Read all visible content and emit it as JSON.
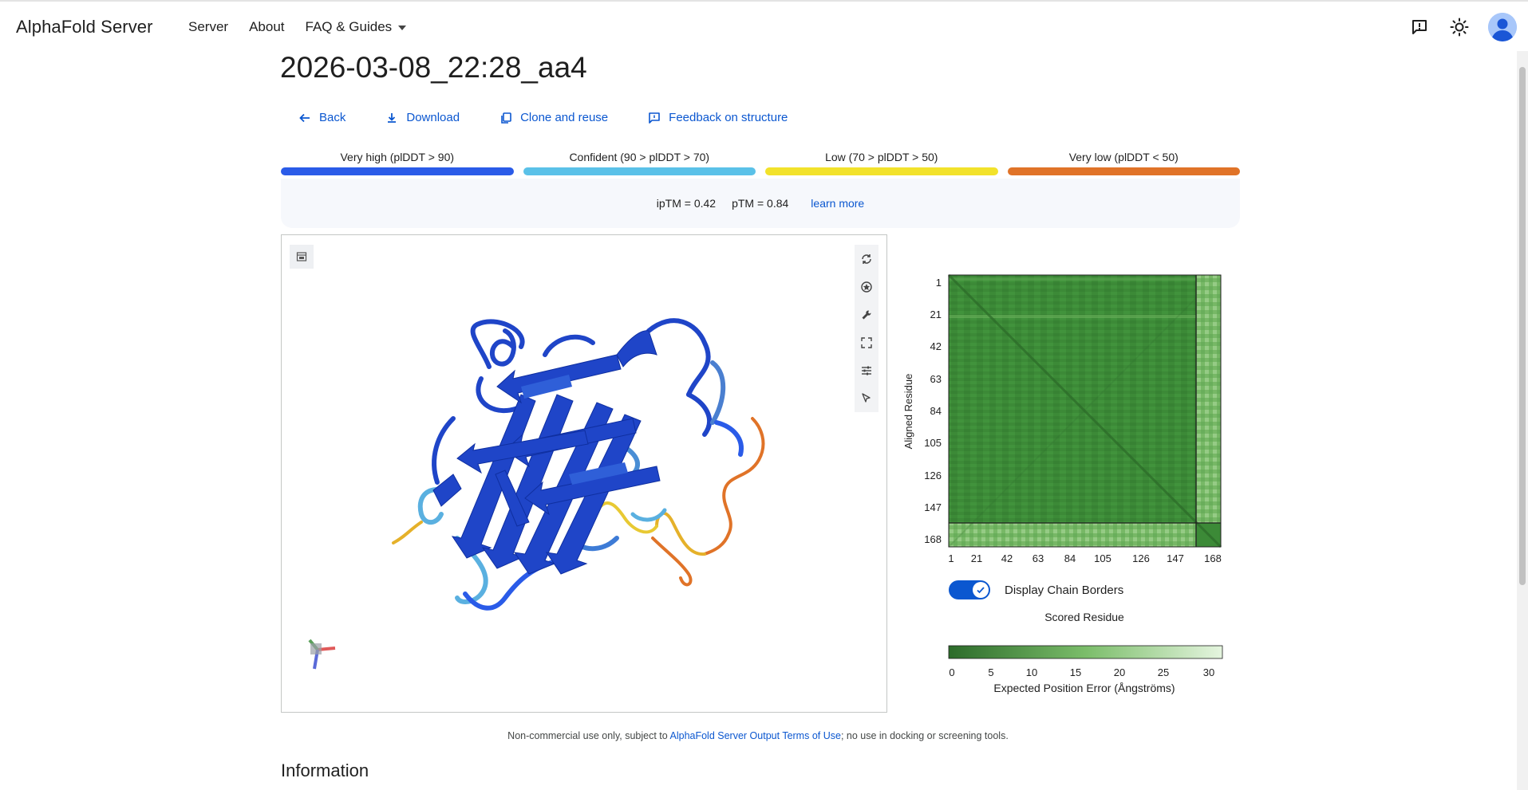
{
  "header": {
    "brand": "AlphaFold Server",
    "nav": [
      "Server",
      "About",
      "FAQ & Guides"
    ],
    "icons": [
      "feedback-icon",
      "theme-icon",
      "account-avatar"
    ]
  },
  "job": {
    "title": "2026-03-08_22:28_aa4"
  },
  "actions": {
    "back": "Back",
    "download": "Download",
    "clone": "Clone and reuse",
    "feedback": "Feedback on structure"
  },
  "plddt_legend": [
    {
      "label": "Very high (plDDT > 90)",
      "color": "#2a5be8"
    },
    {
      "label": "Confident (90 > plDDT > 70)",
      "color": "#5ac1e8"
    },
    {
      "label": "Low (70 > plDDT > 50)",
      "color": "#f2e22b"
    },
    {
      "label": "Very low (plDDT < 50)",
      "color": "#e07328"
    }
  ],
  "metrics": {
    "iptm": "ipTM = 0.42",
    "ptm": "pTM = 0.84",
    "learn_more": "learn more"
  },
  "viewer": {
    "tools": [
      "reset-icon",
      "spin-icon",
      "wrench-icon",
      "fullscreen-icon",
      "settings-icon",
      "select-icon"
    ]
  },
  "pae_plot": {
    "ylabel": "Aligned Residue",
    "xlabel": "Scored Residue",
    "ticks": [
      "1",
      "21",
      "42",
      "63",
      "84",
      "105",
      "126",
      "147",
      "168"
    ],
    "toggle_label": "Display Chain Borders",
    "toggle_on": true,
    "colorbar_ticks": [
      "0",
      "5",
      "10",
      "15",
      "20",
      "25",
      "30"
    ],
    "colorbar_label": "Expected Position Error (Ångströms)"
  },
  "footer": {
    "prefix": "Non-commercial use only, subject to ",
    "link": "AlphaFold Server Output Terms of Use",
    "suffix": "; no use in docking or screening tools."
  },
  "section": {
    "information": "Information"
  }
}
